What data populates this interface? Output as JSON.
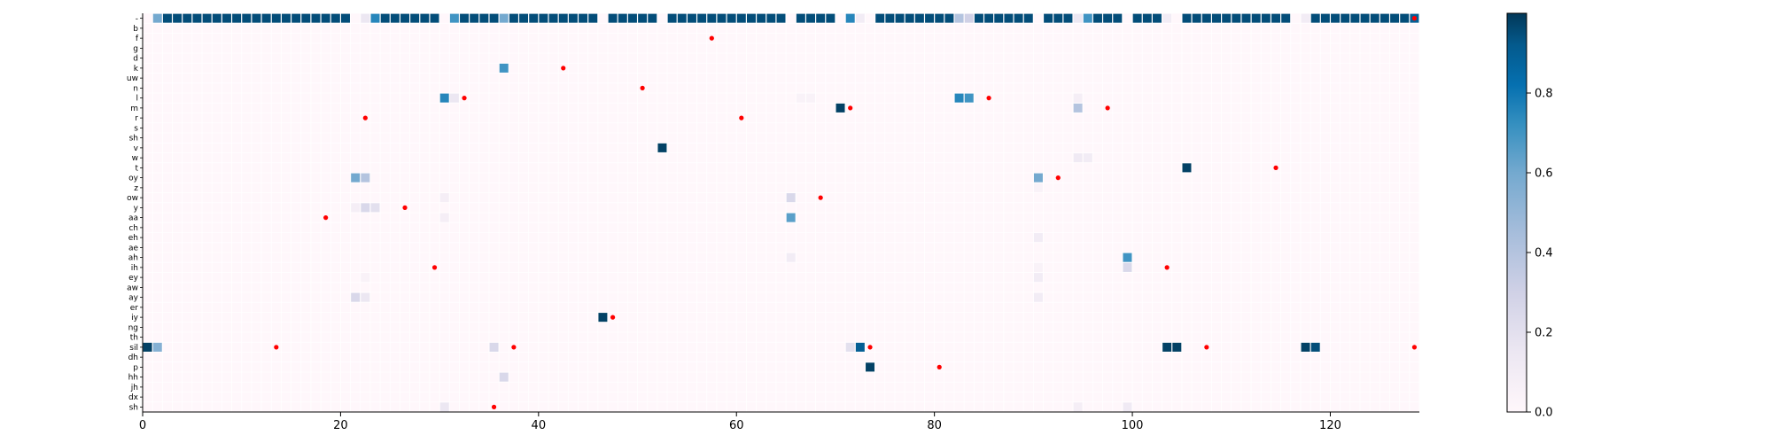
{
  "chart_data": {
    "type": "heatmap",
    "title": "",
    "xlabel": "",
    "ylabel": "",
    "xlim": [
      0,
      129
    ],
    "x_ticks": [
      0,
      20,
      40,
      60,
      80,
      100,
      120
    ],
    "colormap": "PuBu",
    "colorbar": {
      "min": 0.0,
      "max": 1.0,
      "ticks": [
        "0.0",
        "0.2",
        "0.4",
        "0.6",
        "0.8"
      ]
    },
    "colors": {
      "high": "#023858",
      "mid": "#0570b0",
      "low": "#a6bddb",
      "zero": "#fff7fb",
      "marker": "#ff0000"
    },
    "rows": [
      "-",
      "b",
      "f",
      "g",
      "d",
      "k",
      "uw",
      "n",
      "l",
      "m",
      "r",
      "s",
      "sh",
      "v",
      "w",
      "t",
      "oy",
      "z",
      "ow",
      "y",
      "aa",
      "ch",
      "eh",
      "ae",
      "ah",
      "ih",
      "ey",
      "aw",
      "ay",
      "er",
      "iy",
      "ng",
      "th",
      "sil",
      "dh",
      "p",
      "hh",
      "jh",
      "dx",
      "sh"
    ],
    "cells": [
      [
        0,
        1,
        0.6
      ],
      [
        0,
        2,
        0.95
      ],
      [
        0,
        3,
        0.95
      ],
      [
        0,
        4,
        0.95
      ],
      [
        0,
        5,
        0.95
      ],
      [
        0,
        6,
        0.95
      ],
      [
        0,
        7,
        0.95
      ],
      [
        0,
        8,
        0.95
      ],
      [
        0,
        9,
        0.95
      ],
      [
        0,
        10,
        0.95
      ],
      [
        0,
        11,
        0.95
      ],
      [
        0,
        12,
        0.95
      ],
      [
        0,
        13,
        0.95
      ],
      [
        0,
        14,
        0.95
      ],
      [
        0,
        15,
        0.95
      ],
      [
        0,
        16,
        0.95
      ],
      [
        0,
        17,
        0.95
      ],
      [
        0,
        18,
        0.95
      ],
      [
        0,
        19,
        0.95
      ],
      [
        0,
        20,
        0.95
      ],
      [
        0,
        22,
        0.15
      ],
      [
        0,
        23,
        0.75
      ],
      [
        0,
        24,
        0.95
      ],
      [
        0,
        25,
        0.95
      ],
      [
        0,
        26,
        0.95
      ],
      [
        0,
        27,
        0.95
      ],
      [
        0,
        28,
        0.95
      ],
      [
        0,
        29,
        0.95
      ],
      [
        0,
        31,
        0.7
      ],
      [
        0,
        32,
        0.95
      ],
      [
        0,
        33,
        0.95
      ],
      [
        0,
        34,
        0.95
      ],
      [
        0,
        35,
        0.95
      ],
      [
        0,
        36,
        0.6
      ],
      [
        0,
        37,
        0.95
      ],
      [
        0,
        38,
        0.95
      ],
      [
        0,
        39,
        0.95
      ],
      [
        0,
        40,
        0.95
      ],
      [
        0,
        41,
        0.95
      ],
      [
        0,
        42,
        0.95
      ],
      [
        0,
        43,
        0.95
      ],
      [
        0,
        44,
        0.95
      ],
      [
        0,
        45,
        0.95
      ],
      [
        0,
        47,
        0.95
      ],
      [
        0,
        48,
        0.95
      ],
      [
        0,
        49,
        0.95
      ],
      [
        0,
        50,
        0.95
      ],
      [
        0,
        51,
        0.95
      ],
      [
        0,
        53,
        0.95
      ],
      [
        0,
        54,
        0.95
      ],
      [
        0,
        55,
        0.95
      ],
      [
        0,
        56,
        0.95
      ],
      [
        0,
        57,
        0.95
      ],
      [
        0,
        58,
        0.95
      ],
      [
        0,
        59,
        0.95
      ],
      [
        0,
        60,
        0.95
      ],
      [
        0,
        61,
        0.95
      ],
      [
        0,
        62,
        0.95
      ],
      [
        0,
        63,
        0.95
      ],
      [
        0,
        64,
        0.95
      ],
      [
        0,
        66,
        0.95
      ],
      [
        0,
        67,
        0.95
      ],
      [
        0,
        68,
        0.95
      ],
      [
        0,
        69,
        0.95
      ],
      [
        0,
        71,
        0.75
      ],
      [
        0,
        72,
        0.1
      ],
      [
        0,
        74,
        0.95
      ],
      [
        0,
        75,
        0.95
      ],
      [
        0,
        76,
        0.95
      ],
      [
        0,
        77,
        0.95
      ],
      [
        0,
        78,
        0.95
      ],
      [
        0,
        79,
        0.95
      ],
      [
        0,
        80,
        0.95
      ],
      [
        0,
        81,
        0.95
      ],
      [
        0,
        82,
        0.4
      ],
      [
        0,
        83,
        0.3
      ],
      [
        0,
        84,
        0.95
      ],
      [
        0,
        85,
        0.95
      ],
      [
        0,
        86,
        0.95
      ],
      [
        0,
        87,
        0.95
      ],
      [
        0,
        88,
        0.95
      ],
      [
        0,
        89,
        0.95
      ],
      [
        0,
        91,
        0.95
      ],
      [
        0,
        92,
        0.95
      ],
      [
        0,
        93,
        0.95
      ],
      [
        0,
        94,
        0.15
      ],
      [
        0,
        95,
        0.7
      ],
      [
        0,
        96,
        0.95
      ],
      [
        0,
        97,
        0.95
      ],
      [
        0,
        98,
        0.95
      ],
      [
        0,
        100,
        0.95
      ],
      [
        0,
        101,
        0.95
      ],
      [
        0,
        102,
        0.95
      ],
      [
        0,
        103,
        0.1
      ],
      [
        0,
        105,
        0.95
      ],
      [
        0,
        106,
        0.95
      ],
      [
        0,
        107,
        0.95
      ],
      [
        0,
        108,
        0.95
      ],
      [
        0,
        109,
        0.95
      ],
      [
        0,
        110,
        0.95
      ],
      [
        0,
        111,
        0.95
      ],
      [
        0,
        112,
        0.95
      ],
      [
        0,
        113,
        0.95
      ],
      [
        0,
        114,
        0.95
      ],
      [
        0,
        115,
        0.95
      ],
      [
        0,
        117,
        0.1
      ],
      [
        0,
        118,
        0.95
      ],
      [
        0,
        119,
        0.95
      ],
      [
        0,
        120,
        0.95
      ],
      [
        0,
        121,
        0.95
      ],
      [
        0,
        122,
        0.95
      ],
      [
        0,
        123,
        0.95
      ],
      [
        0,
        124,
        0.95
      ],
      [
        0,
        125,
        0.95
      ],
      [
        0,
        126,
        0.95
      ],
      [
        0,
        127,
        0.95
      ],
      [
        0,
        128,
        0.9
      ],
      [
        5,
        36,
        0.7
      ],
      [
        8,
        30,
        0.75
      ],
      [
        8,
        31,
        0.15
      ],
      [
        8,
        82,
        0.75
      ],
      [
        8,
        83,
        0.7
      ],
      [
        8,
        94,
        0.08
      ],
      [
        8,
        66,
        0.05
      ],
      [
        8,
        67,
        0.05
      ],
      [
        9,
        70,
        0.98
      ],
      [
        9,
        94,
        0.4
      ],
      [
        13,
        52,
        0.98
      ],
      [
        14,
        94,
        0.12
      ],
      [
        14,
        95,
        0.1
      ],
      [
        15,
        105,
        0.98
      ],
      [
        16,
        21,
        0.6
      ],
      [
        16,
        22,
        0.4
      ],
      [
        16,
        90,
        0.6
      ],
      [
        17,
        90,
        0.05
      ],
      [
        18,
        30,
        0.08
      ],
      [
        18,
        65,
        0.25
      ],
      [
        19,
        21,
        0.08
      ],
      [
        19,
        22,
        0.25
      ],
      [
        19,
        23,
        0.2
      ],
      [
        20,
        30,
        0.08
      ],
      [
        20,
        65,
        0.65
      ],
      [
        22,
        90,
        0.1
      ],
      [
        24,
        99,
        0.7
      ],
      [
        24,
        65,
        0.1
      ],
      [
        25,
        99,
        0.25
      ],
      [
        25,
        90,
        0.05
      ],
      [
        26,
        90,
        0.1
      ],
      [
        26,
        22,
        0.05
      ],
      [
        28,
        21,
        0.25
      ],
      [
        28,
        22,
        0.15
      ],
      [
        28,
        90,
        0.1
      ],
      [
        30,
        46,
        0.98
      ],
      [
        33,
        0,
        0.98
      ],
      [
        33,
        1,
        0.55
      ],
      [
        33,
        35,
        0.25
      ],
      [
        33,
        71,
        0.2
      ],
      [
        33,
        72,
        0.9
      ],
      [
        33,
        103,
        0.98
      ],
      [
        33,
        104,
        0.98
      ],
      [
        33,
        117,
        0.98
      ],
      [
        33,
        118,
        0.95
      ],
      [
        35,
        73,
        0.98
      ],
      [
        36,
        36,
        0.25
      ],
      [
        39,
        30,
        0.15
      ],
      [
        39,
        99,
        0.12
      ],
      [
        39,
        94,
        0.08
      ]
    ],
    "markers": [
      [
        0,
        128
      ],
      [
        2,
        57
      ],
      [
        5,
        42
      ],
      [
        7,
        50
      ],
      [
        8,
        32
      ],
      [
        8,
        85
      ],
      [
        9,
        71
      ],
      [
        9,
        97
      ],
      [
        10,
        22
      ],
      [
        10,
        60
      ],
      [
        15,
        114
      ],
      [
        16,
        92
      ],
      [
        18,
        68
      ],
      [
        19,
        26
      ],
      [
        20,
        18
      ],
      [
        25,
        29
      ],
      [
        25,
        103
      ],
      [
        30,
        47
      ],
      [
        33,
        13
      ],
      [
        33,
        37
      ],
      [
        33,
        73
      ],
      [
        33,
        107
      ],
      [
        33,
        128
      ],
      [
        35,
        80
      ],
      [
        39,
        35
      ]
    ]
  }
}
